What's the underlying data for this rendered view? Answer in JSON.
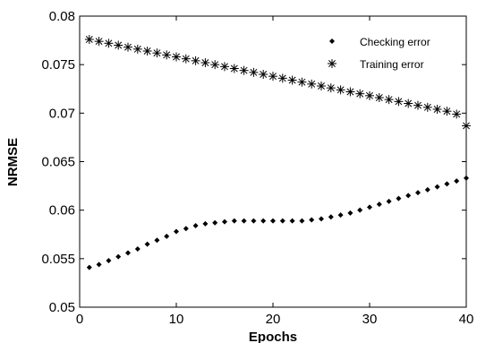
{
  "chart_data": {
    "type": "scatter",
    "xlabel": "Epochs",
    "ylabel": "NRMSE",
    "xlim": [
      0,
      40
    ],
    "ylim": [
      0.05,
      0.08
    ],
    "xticks": [
      "0",
      "10",
      "20",
      "30",
      "40"
    ],
    "yticks": [
      "0.05",
      "0.055",
      "0.06",
      "0.065",
      "0.07",
      "0.075",
      "0.08"
    ],
    "grid": false,
    "legend_position": "top-right",
    "series": [
      {
        "name": "Checking error",
        "marker": "diamond-dot",
        "color": "#000000",
        "x": [
          1,
          2,
          3,
          4,
          5,
          6,
          7,
          8,
          9,
          10,
          11,
          12,
          13,
          14,
          15,
          16,
          17,
          18,
          19,
          20,
          21,
          22,
          23,
          24,
          25,
          26,
          27,
          28,
          29,
          30,
          31,
          32,
          33,
          34,
          35,
          36,
          37,
          38,
          39,
          40
        ],
        "y": [
          0.0541,
          0.0544,
          0.0548,
          0.0552,
          0.0556,
          0.056,
          0.0565,
          0.0569,
          0.0573,
          0.0578,
          0.0581,
          0.0584,
          0.0586,
          0.0587,
          0.0588,
          0.0589,
          0.0589,
          0.0589,
          0.0589,
          0.0589,
          0.0589,
          0.0589,
          0.0589,
          0.059,
          0.0591,
          0.0593,
          0.0595,
          0.0597,
          0.06,
          0.0603,
          0.0606,
          0.0609,
          0.0612,
          0.0615,
          0.0618,
          0.0621,
          0.0624,
          0.0627,
          0.063,
          0.0633
        ]
      },
      {
        "name": "Training error",
        "marker": "asterisk",
        "color": "#000000",
        "x": [
          1,
          2,
          3,
          4,
          5,
          6,
          7,
          8,
          9,
          10,
          11,
          12,
          13,
          14,
          15,
          16,
          17,
          18,
          19,
          20,
          21,
          22,
          23,
          24,
          25,
          26,
          27,
          28,
          29,
          30,
          31,
          32,
          33,
          34,
          35,
          36,
          37,
          38,
          39,
          40
        ],
        "y": [
          0.0776,
          0.0774,
          0.0772,
          0.077,
          0.0768,
          0.0766,
          0.0764,
          0.0762,
          0.076,
          0.0758,
          0.0756,
          0.0754,
          0.0752,
          0.075,
          0.0748,
          0.0746,
          0.0744,
          0.0742,
          0.074,
          0.0738,
          0.0736,
          0.0734,
          0.0732,
          0.073,
          0.0728,
          0.0726,
          0.0724,
          0.0722,
          0.072,
          0.0718,
          0.0716,
          0.0714,
          0.0712,
          0.071,
          0.0708,
          0.0706,
          0.0704,
          0.0702,
          0.0699,
          0.0687
        ]
      }
    ]
  }
}
